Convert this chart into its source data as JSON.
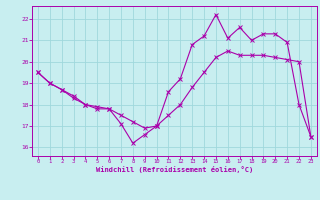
{
  "xlabel": "Windchill (Refroidissement éolien,°C)",
  "bg_color": "#c8eef0",
  "line_color": "#aa00aa",
  "grid_color": "#a0d8dc",
  "axis_color": "#aa00aa",
  "xlim": [
    -0.5,
    23.5
  ],
  "ylim": [
    15.6,
    22.6
  ],
  "yticks": [
    16,
    17,
    18,
    19,
    20,
    21,
    22
  ],
  "xticks": [
    0,
    1,
    2,
    3,
    4,
    5,
    6,
    7,
    8,
    9,
    10,
    11,
    12,
    13,
    14,
    15,
    16,
    17,
    18,
    19,
    20,
    21,
    22,
    23
  ],
  "curve1_x": [
    0,
    1,
    2,
    3,
    4,
    5,
    6,
    7,
    8,
    9,
    10,
    11,
    12,
    13,
    14,
    15,
    16,
    17,
    18,
    19,
    20,
    21,
    22,
    23
  ],
  "curve1_y": [
    19.5,
    19.0,
    18.7,
    18.4,
    18.0,
    17.9,
    17.8,
    17.5,
    17.2,
    16.9,
    17.0,
    17.5,
    18.0,
    18.8,
    19.5,
    20.2,
    20.5,
    20.3,
    20.3,
    20.3,
    20.2,
    20.1,
    20.0,
    16.5
  ],
  "curve2_x": [
    0,
    1,
    2,
    3,
    4,
    5,
    6,
    7,
    8,
    9,
    10,
    11,
    12,
    13,
    14,
    15,
    16,
    17,
    18,
    19,
    20,
    21,
    22,
    23
  ],
  "curve2_y": [
    19.5,
    19.0,
    18.7,
    18.3,
    18.0,
    17.8,
    17.8,
    17.1,
    16.2,
    16.6,
    17.0,
    18.6,
    19.2,
    20.8,
    21.2,
    22.2,
    21.1,
    21.6,
    21.0,
    21.3,
    21.3,
    20.9,
    18.0,
    16.5
  ]
}
